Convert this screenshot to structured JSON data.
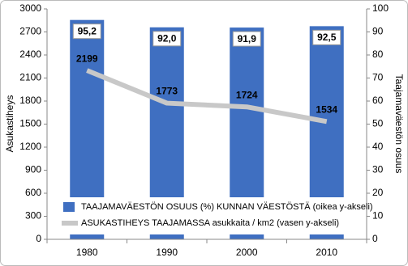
{
  "chart_data": {
    "type": "bar",
    "categories": [
      "1980",
      "1990",
      "2000",
      "2010"
    ],
    "series": [
      {
        "name": "TAAJAMAVÄESTÖN OSUUS (%) KUNNAN VÄESTÖSTÄ (oikea y-akseli)",
        "color": "#3f6fc1",
        "type": "bar",
        "axis": "y2",
        "values": [
          95.2,
          92.0,
          91.9,
          92.5
        ],
        "value_labels": [
          "95,2",
          "92,0",
          "91,9",
          "92,5"
        ]
      },
      {
        "name": "ASUKASTIHEYS TAAJAMASSA asukkaita / km2  (vasen y-akseli)",
        "color": "#c8c8c8",
        "type": "line",
        "values": [
          2199,
          1773,
          1724,
          1534
        ]
      }
    ],
    "ylabel": "Asukastiheys",
    "y2label": "Taajamaväestön osuus",
    "ylim": [
      0,
      3000
    ],
    "yticks": [
      0,
      300,
      600,
      900,
      1200,
      1500,
      1800,
      2100,
      2400,
      2700,
      3000
    ],
    "y2lim": [
      0,
      100
    ],
    "y2ticks": [
      0,
      10,
      20,
      30,
      40,
      50,
      60,
      70,
      80,
      90,
      100
    ],
    "legend": "bottom"
  }
}
